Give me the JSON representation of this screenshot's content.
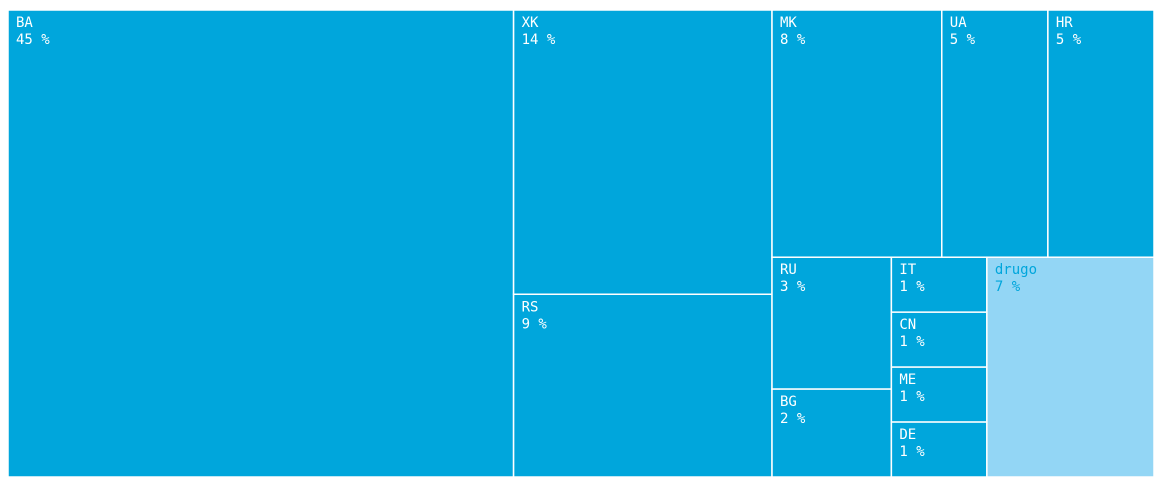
{
  "chart_data": {
    "type": "treemap",
    "categories": [
      "BA",
      "XK",
      "RS",
      "MK",
      "UA",
      "HR",
      "RU",
      "BG",
      "IT",
      "CN",
      "ME",
      "DE",
      "drugo"
    ],
    "values": [
      45,
      14,
      9,
      8,
      5,
      5,
      3,
      2,
      1,
      1,
      1,
      1,
      7
    ],
    "value_labels": [
      "45 %",
      "14 %",
      "9 %",
      "8 %",
      "5 %",
      "5 %",
      "3 %",
      "2 %",
      "1 %",
      "1 %",
      "1 %",
      "1 %",
      "7 %"
    ],
    "colors": [
      "#00a6dc",
      "#00a6dc",
      "#00a6dc",
      "#00a6dc",
      "#00a6dc",
      "#00a6dc",
      "#00a6dc",
      "#00a6dc",
      "#00a6dc",
      "#00a6dc",
      "#00a6dc",
      "#00a6dc",
      "#93d6f5"
    ]
  }
}
